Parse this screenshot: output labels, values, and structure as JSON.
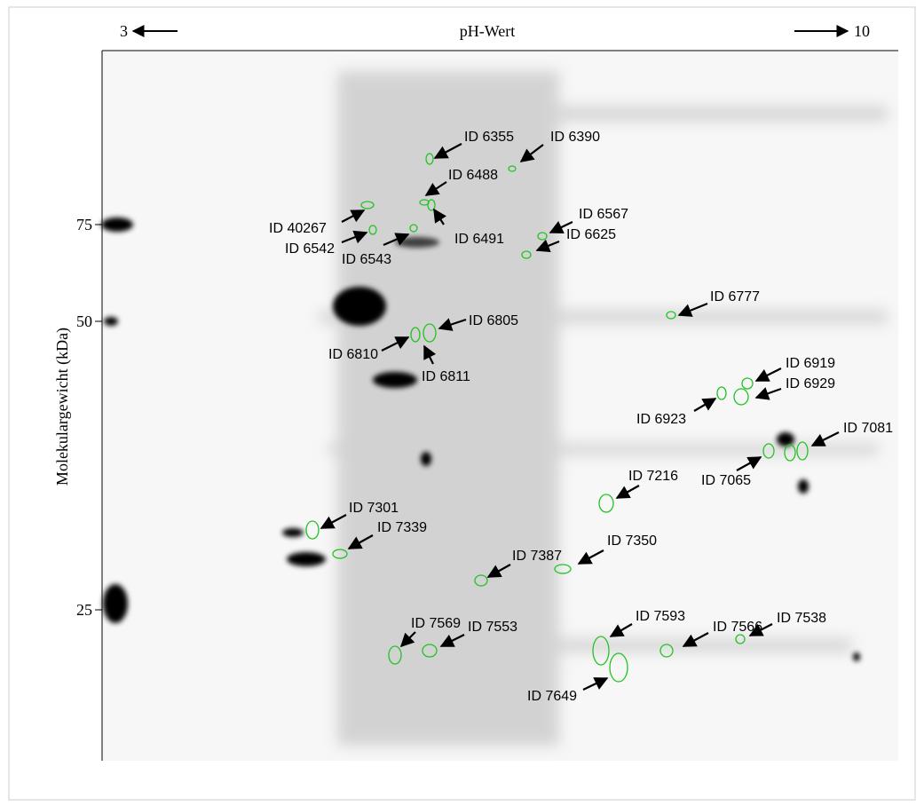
{
  "header": {
    "ph_low": "3",
    "title": "pH-Wert",
    "ph_high": "10"
  },
  "y_axis": {
    "label": "Molekulargewicht (kDa)",
    "markers": [
      "75",
      "50",
      "25"
    ]
  },
  "spots": [
    "ID 6355",
    "ID 6390",
    "ID 6488",
    "ID 40267",
    "ID 6542",
    "ID 6543",
    "ID 6491",
    "ID 6567",
    "ID 6625",
    "ID 6777",
    "ID 6805",
    "ID 6810",
    "ID 6811",
    "ID 6919",
    "ID 6929",
    "ID 6923",
    "ID 7081",
    "ID 7065",
    "ID 7216",
    "ID 7301",
    "ID 7339",
    "ID 7387",
    "ID 7350",
    "ID 7569",
    "ID 7553",
    "ID 7593",
    "ID 7649",
    "ID 7566",
    "ID 7538"
  ]
}
